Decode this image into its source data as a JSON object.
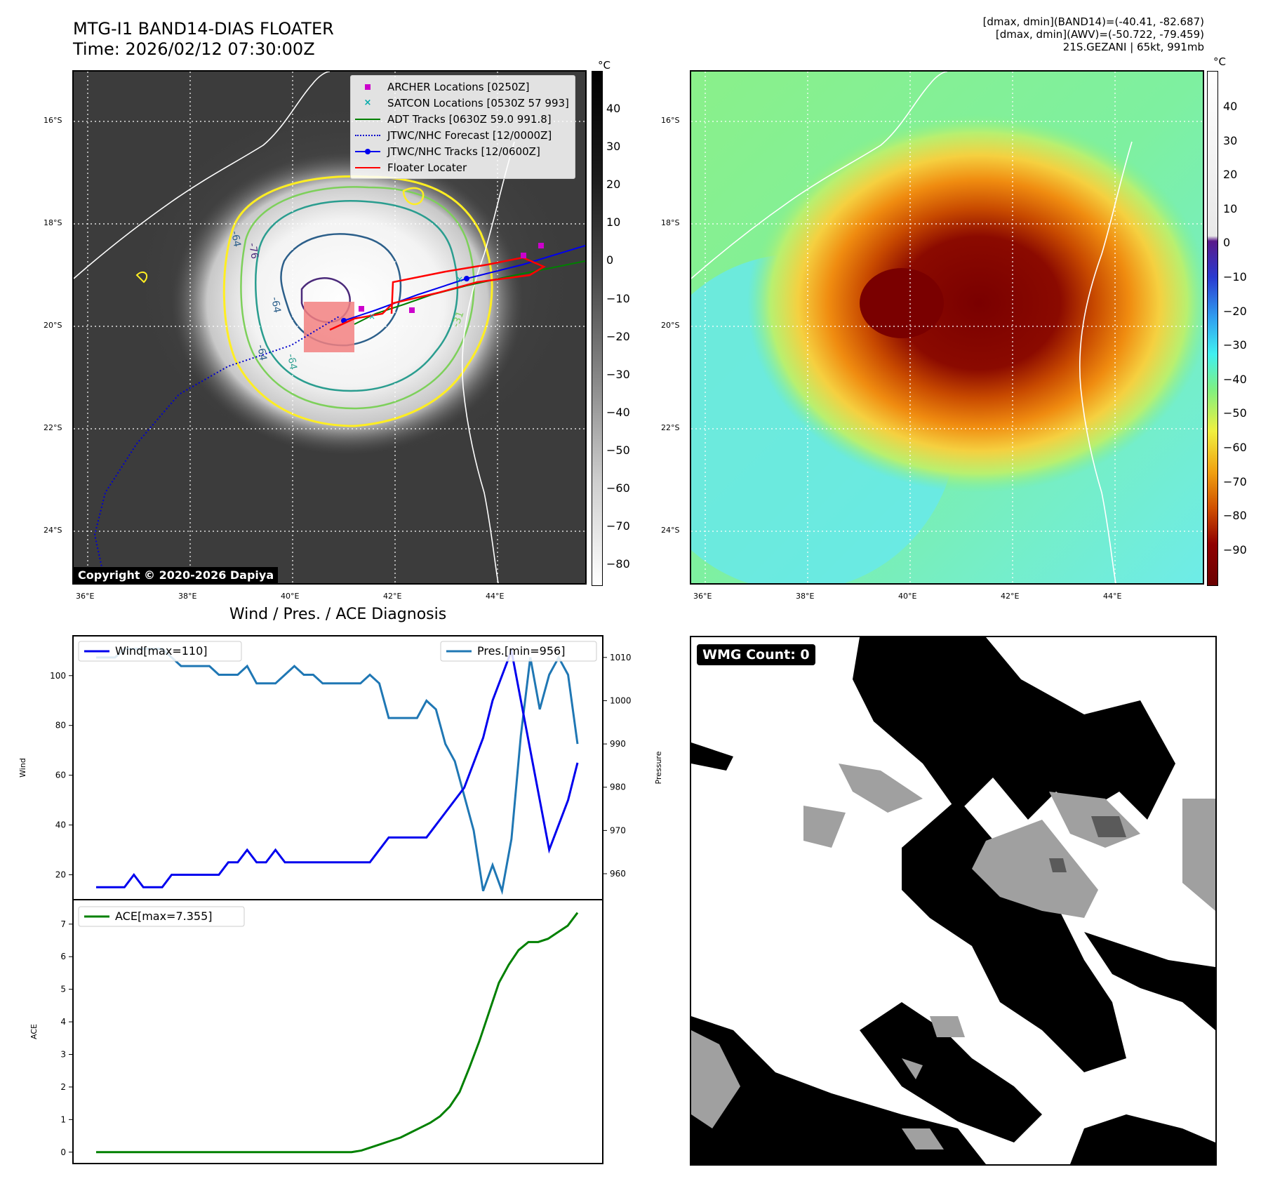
{
  "header": {
    "title_line1": "MTG-I1 BAND14-DIAS FLOATER",
    "title_line2": "Time: 2026/02/12 07:30:00Z",
    "meta_line1": "[dmax, dmin](BAND14)=(-40.41, -82.687)",
    "meta_line2": "[dmax, dmin](AWV)=(-50.722, -79.459)",
    "meta_line3": "21S.GEZANI | 65kt, 991mb"
  },
  "maps": {
    "lat_labels": [
      "16°S",
      "18°S",
      "20°S",
      "22°S",
      "24°S"
    ],
    "lon_labels": [
      "36°E",
      "38°E",
      "40°E",
      "42°E",
      "44°E"
    ],
    "contour_labels": [
      "-64",
      "-76",
      "-64",
      "-64",
      "-64",
      "-31"
    ]
  },
  "colorbar_left": {
    "unit": "°C",
    "ticks": [
      "40",
      "30",
      "20",
      "10",
      "0",
      "−10",
      "−20",
      "−30",
      "−40",
      "−50",
      "−60",
      "−70",
      "−80"
    ]
  },
  "colorbar_right": {
    "unit": "°C",
    "ticks": [
      "40",
      "30",
      "20",
      "10",
      "0",
      "−10",
      "−20",
      "−30",
      "−40",
      "−50",
      "−60",
      "−70",
      "−80",
      "−90"
    ]
  },
  "legend": {
    "archer": "ARCHER Locations [0250Z]",
    "satcon": "SATCON Locations [0530Z 57 993]",
    "adt": "ADT Tracks [0630Z 59.0 991.8]",
    "forecast": "JTWC/NHC Forecast [12/0000Z]",
    "tracks": "JTWC/NHC Tracks [12/0600Z]",
    "floater": "Floater Locater"
  },
  "copyright": "Copyright © 2020-2026 Dapiya",
  "wmg_count": "WMG Count: 0",
  "colors": {
    "wind": "#0000ee",
    "pressure": "#1f77b4",
    "ace": "#008000",
    "floater": "#ff0000",
    "adt": "#008000"
  },
  "chart_data": [
    {
      "type": "line",
      "title": "Wind / Pres. / ACE Diagnosis",
      "xlabel": "",
      "ylabel": "Wind",
      "ylabel_right": "Pressure",
      "yticks": [
        "20",
        "40",
        "60",
        "80",
        "100"
      ],
      "yticks_right": [
        "960",
        "970",
        "980",
        "990",
        "1000",
        "1010"
      ],
      "ylim": [
        10,
        116
      ],
      "ylim_right": [
        954,
        1015
      ],
      "series": [
        {
          "name": "Wind",
          "legend": "Wind[max=110]",
          "axis": "left",
          "values": [
            15,
            15,
            15,
            15,
            20,
            15,
            15,
            15,
            20,
            20,
            20,
            20,
            20,
            20,
            25,
            25,
            30,
            25,
            25,
            30,
            25,
            25,
            25,
            25,
            25,
            25,
            25,
            25,
            25,
            25,
            30,
            35,
            35,
            35,
            35,
            35,
            40,
            45,
            50,
            55,
            65,
            75,
            90,
            100,
            110,
            90,
            70,
            50,
            30,
            40,
            50,
            65
          ]
        },
        {
          "name": "Pressure",
          "legend": "Pres.[min=956]",
          "axis": "right",
          "values": [
            1010,
            1010,
            1010,
            1012,
            1012,
            1012,
            1012,
            1012,
            1010,
            1008,
            1008,
            1008,
            1008,
            1006,
            1006,
            1006,
            1008,
            1004,
            1004,
            1004,
            1006,
            1008,
            1006,
            1006,
            1004,
            1004,
            1004,
            1004,
            1004,
            1006,
            1004,
            996,
            996,
            996,
            996,
            1000,
            998,
            990,
            986,
            978,
            970,
            956,
            962,
            956,
            968,
            992,
            1010,
            998,
            1006,
            1010,
            1006,
            990
          ]
        }
      ]
    },
    {
      "type": "line",
      "ylabel": "ACE",
      "yticks": [
        "0",
        "1",
        "2",
        "3",
        "4",
        "5",
        "6",
        "7"
      ],
      "ylim": [
        -0.35,
        7.75
      ],
      "series": [
        {
          "name": "ACE",
          "legend": "ACE[max=7.355]",
          "values": [
            0,
            0,
            0,
            0,
            0,
            0,
            0,
            0,
            0,
            0,
            0,
            0,
            0,
            0,
            0,
            0,
            0,
            0,
            0,
            0,
            0,
            0,
            0,
            0,
            0,
            0,
            0,
            0.05,
            0.15,
            0.25,
            0.35,
            0.45,
            0.6,
            0.75,
            0.9,
            1.1,
            1.4,
            1.85,
            2.6,
            3.4,
            4.3,
            5.2,
            5.75,
            6.2,
            6.45,
            6.45,
            6.55,
            6.75,
            6.95,
            7.35
          ]
        }
      ]
    }
  ]
}
